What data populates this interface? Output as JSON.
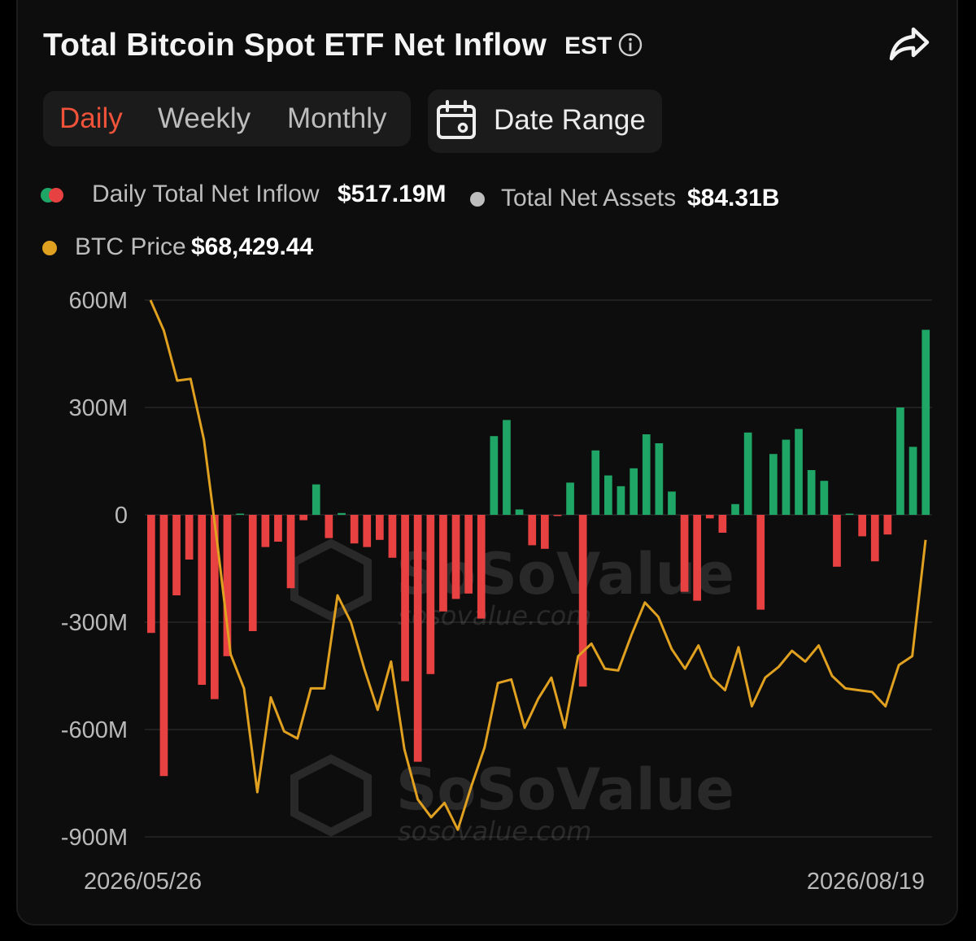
{
  "header": {
    "title": "Total Bitcoin Spot ETF Net Inflow",
    "timezone": "EST"
  },
  "tabs": [
    {
      "label": "Daily",
      "active": true
    },
    {
      "label": "Weekly",
      "active": false
    },
    {
      "label": "Monthly",
      "active": false
    }
  ],
  "date_range": {
    "label": "Date Range"
  },
  "legend": {
    "daily_inflow": {
      "label": "Daily Total Net Inflow",
      "value": "$517.19M"
    },
    "net_assets": {
      "label": "Total Net Assets",
      "value": "$84.31B"
    },
    "btc_price": {
      "label": "BTC Price",
      "value": "$68,429.44"
    }
  },
  "watermark": {
    "brand": "SoSoValue",
    "url": "sosovalue.com"
  },
  "colors": {
    "positive": "#1fa565",
    "negative": "#e84141",
    "price_line": "#e0a020",
    "assets_dot": "#bdbdbd",
    "accent": "#f0533a"
  },
  "chart_data": {
    "type": "bar",
    "title": "Total Bitcoin Spot ETF Net Inflow",
    "x_start_label": "2026/05/26",
    "x_end_label": "2026/08/19",
    "y_ticks": [
      "600M",
      "300M",
      "0",
      "-300M",
      "-600M",
      "-900M"
    ],
    "ylim": [
      -900,
      600
    ],
    "y_unit": "M USD",
    "grid": true,
    "series": [
      {
        "name": "Daily Total Net Inflow",
        "kind": "bar",
        "values": [
          -330,
          -730,
          -225,
          -125,
          -475,
          -515,
          -395,
          2,
          -325,
          -90,
          -75,
          -205,
          -15,
          85,
          -65,
          5,
          -80,
          -90,
          -70,
          -120,
          -465,
          -690,
          -445,
          -270,
          -235,
          -220,
          -290,
          220,
          265,
          15,
          -85,
          -95,
          -2,
          90,
          -480,
          180,
          110,
          80,
          130,
          225,
          200,
          65,
          -215,
          -240,
          -10,
          -50,
          30,
          230,
          -265,
          170,
          210,
          240,
          125,
          95,
          -145,
          3,
          -60,
          -130,
          -55,
          300,
          190,
          517
        ]
      },
      {
        "name": "BTC Price",
        "kind": "line",
        "values": [
          600,
          515,
          375,
          380,
          210,
          -80,
          -390,
          -485,
          -775,
          -510,
          -605,
          -625,
          -485,
          -485,
          -225,
          -300,
          -430,
          -545,
          -410,
          -655,
          -795,
          -845,
          -805,
          -880,
          -760,
          -650,
          -470,
          -460,
          -595,
          -515,
          -455,
          -595,
          -395,
          -360,
          -430,
          -435,
          -335,
          -245,
          -285,
          -375,
          -430,
          -365,
          -455,
          -490,
          -370,
          -535,
          -455,
          -425,
          -380,
          -410,
          -365,
          -450,
          -485,
          -490,
          -495,
          -535,
          -420,
          -395,
          -70
        ]
      }
    ]
  }
}
